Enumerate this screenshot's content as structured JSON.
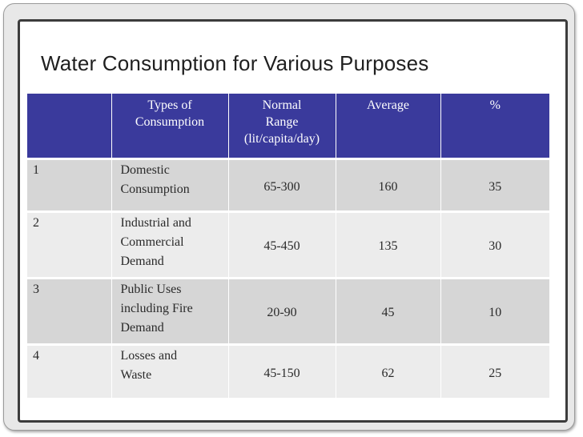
{
  "title": "Water Consumption for Various Purposes",
  "table": {
    "headers": [
      "",
      "Types of Consumption",
      "Normal Range (lit/capita/day)",
      "Average",
      "%"
    ],
    "header_lines": {
      "types": [
        "Types of",
        "Consumption"
      ],
      "range": [
        "Normal",
        "Range",
        "(lit/capita/day)"
      ]
    },
    "rows": [
      {
        "num": "1",
        "type_lines": [
          "Domestic",
          "Consumption"
        ],
        "range": "65-300",
        "average": "160",
        "percent": "35"
      },
      {
        "num": "2",
        "type_lines": [
          "Industrial and",
          "Commercial",
          "Demand"
        ],
        "range": "45-450",
        "average": "135",
        "percent": "30"
      },
      {
        "num": "3",
        "type_lines": [
          "Public Uses",
          "including Fire",
          "Demand"
        ],
        "range": "20-90",
        "average": "45",
        "percent": "10"
      },
      {
        "num": "4",
        "type_lines": [
          "Losses and",
          "Waste"
        ],
        "range": "45-150",
        "average": "62",
        "percent": "25"
      }
    ]
  },
  "colors": {
    "header_bg": "#3a3a9c",
    "row_dark": "#d6d6d6",
    "row_light": "#ececec",
    "frame_border": "#3c3c3c"
  }
}
